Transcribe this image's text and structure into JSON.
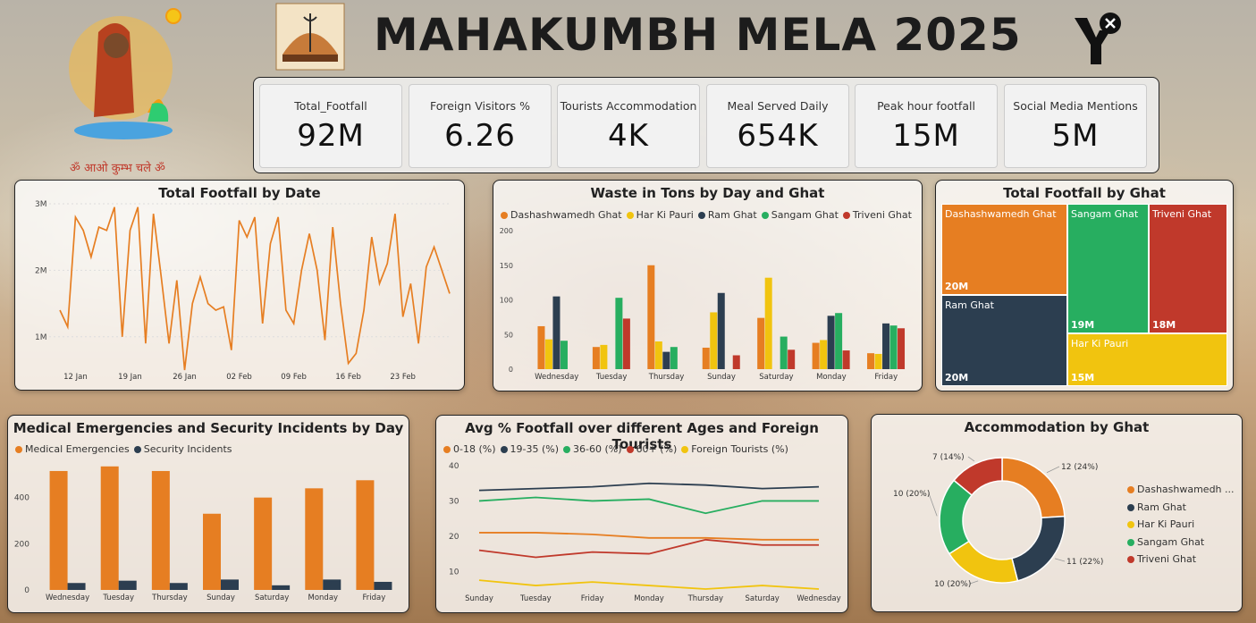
{
  "header": {
    "title": "MAHAKUMBH MELA 2025",
    "tagline": "ॐ आओ कुम्भ चले ॐ"
  },
  "kpis": [
    {
      "label": "Total_Footfall",
      "value": "92M"
    },
    {
      "label": "Foreign Visitors %",
      "value": "6.26"
    },
    {
      "label": "Tourists Accommodation",
      "value": "4K"
    },
    {
      "label": "Meal Served Daily",
      "value": "654K"
    },
    {
      "label": "Peak hour footfall",
      "value": "15M"
    },
    {
      "label": "Social Media Mentions",
      "value": "5M"
    }
  ],
  "colors": {
    "orange": "#e67e22",
    "yellow": "#f1c40f",
    "navy": "#2c3e50",
    "green": "#27ae60",
    "red": "#c0392b"
  },
  "chart_data": [
    {
      "type": "line",
      "title": "Total Footfall by Date",
      "x_tick_labels": [
        "12 Jan",
        "19 Jan",
        "26 Jan",
        "02 Feb",
        "09 Feb",
        "16 Feb",
        "23 Feb"
      ],
      "y_tick_labels": [
        "1M",
        "2M",
        "3M"
      ],
      "ylim": [
        0.5,
        3.0
      ],
      "series": [
        {
          "values": [
            1.4,
            1.15,
            2.8,
            2.6,
            2.2,
            2.65,
            2.6,
            2.95,
            1.0,
            2.6,
            2.95,
            0.9,
            2.85,
            1.9,
            0.9,
            1.85,
            0.5,
            1.5,
            1.9,
            1.5,
            1.4,
            1.45,
            0.8,
            2.75,
            2.5,
            2.8,
            1.2,
            2.4,
            2.8,
            1.4,
            1.2,
            2.0,
            2.55,
            2.0,
            0.95,
            2.65,
            1.5,
            0.6,
            0.75,
            1.4,
            2.5,
            1.8,
            2.1,
            2.85,
            1.3,
            1.8,
            0.9,
            2.05,
            2.35,
            2.0,
            1.65
          ]
        }
      ]
    },
    {
      "type": "bar",
      "title": "Waste in Tons by Day and Ghat",
      "categories": [
        "Wednesday",
        "Tuesday",
        "Thursday",
        "Sunday",
        "Saturday",
        "Monday",
        "Friday"
      ],
      "y_tick_labels": [
        "0",
        "50",
        "100",
        "150",
        "200"
      ],
      "ylim": [
        0,
        200
      ],
      "series": [
        {
          "name": "Dashashwamedh Ghat",
          "values": [
            62,
            32,
            150,
            31,
            74,
            38,
            23
          ]
        },
        {
          "name": "Har Ki Pauri",
          "values": [
            43,
            35,
            40,
            82,
            132,
            42,
            22
          ]
        },
        {
          "name": "Ram Ghat",
          "values": [
            105,
            0,
            25,
            110,
            0,
            77,
            66
          ]
        },
        {
          "name": "Sangam Ghat",
          "values": [
            41,
            103,
            32,
            0,
            47,
            81,
            63
          ]
        },
        {
          "name": "Triveni Ghat",
          "values": [
            0,
            73,
            0,
            20,
            28,
            27,
            59
          ]
        }
      ]
    },
    {
      "type": "treemap",
      "title": "Total Footfall by Ghat",
      "items": [
        {
          "name": "Dashashwamedh Ghat",
          "value": "20M"
        },
        {
          "name": "Ram Ghat",
          "value": "20M"
        },
        {
          "name": "Sangam Ghat",
          "value": "19M"
        },
        {
          "name": "Triveni Ghat",
          "value": "18M"
        },
        {
          "name": "Har Ki Pauri",
          "value": "15M"
        }
      ]
    },
    {
      "type": "bar",
      "title": "Medical Emergencies and Security Incidents by Day",
      "categories": [
        "Wednesday",
        "Tuesday",
        "Thursday",
        "Sunday",
        "Saturday",
        "Monday",
        "Friday"
      ],
      "y_tick_labels": [
        "0",
        "200",
        "400"
      ],
      "ylim": [
        0,
        600
      ],
      "series": [
        {
          "name": "Medical Emergencies",
          "values": [
            515,
            535,
            515,
            330,
            400,
            440,
            475
          ]
        },
        {
          "name": "Security Incidents",
          "values": [
            30,
            40,
            30,
            45,
            20,
            45,
            35
          ]
        }
      ]
    },
    {
      "type": "line",
      "title": "Avg % Footfall over different Ages and Foreign Tourists",
      "categories": [
        "Sunday",
        "Tuesday",
        "Friday",
        "Monday",
        "Thursday",
        "Saturday",
        "Wednesday"
      ],
      "y_tick_labels": [
        "10",
        "20",
        "30",
        "40"
      ],
      "ylim": [
        5,
        40
      ],
      "series": [
        {
          "name": "0-18 (%)",
          "values": [
            21,
            21,
            20.5,
            19.5,
            19.5,
            19,
            19
          ]
        },
        {
          "name": "19-35 (%)",
          "values": [
            33,
            33.5,
            34,
            35,
            34.5,
            33.5,
            34
          ]
        },
        {
          "name": "36-60 (%)",
          "values": [
            30,
            31,
            30,
            30.5,
            26.5,
            30,
            30
          ]
        },
        {
          "name": "60+ (%)",
          "values": [
            16,
            14,
            15.5,
            15,
            19,
            17.5,
            17.5
          ]
        },
        {
          "name": "Foreign Tourists (%)",
          "values": [
            7.5,
            6,
            7,
            6,
            5,
            6,
            5
          ]
        }
      ]
    },
    {
      "type": "pie",
      "title": "Accommodation by Ghat",
      "slices": [
        {
          "name": "Dashashwamedh ...",
          "label": "12 (24%)",
          "value": 12
        },
        {
          "name": "Ram Ghat",
          "label": "11 (22%)",
          "value": 11
        },
        {
          "name": "Har Ki Pauri",
          "label": "10 (20%)",
          "value": 10
        },
        {
          "name": "Sangam Ghat",
          "label": "10 (20%)",
          "value": 10
        },
        {
          "name": "Triveni Ghat",
          "label": "7 (14%)",
          "value": 7
        }
      ]
    }
  ]
}
